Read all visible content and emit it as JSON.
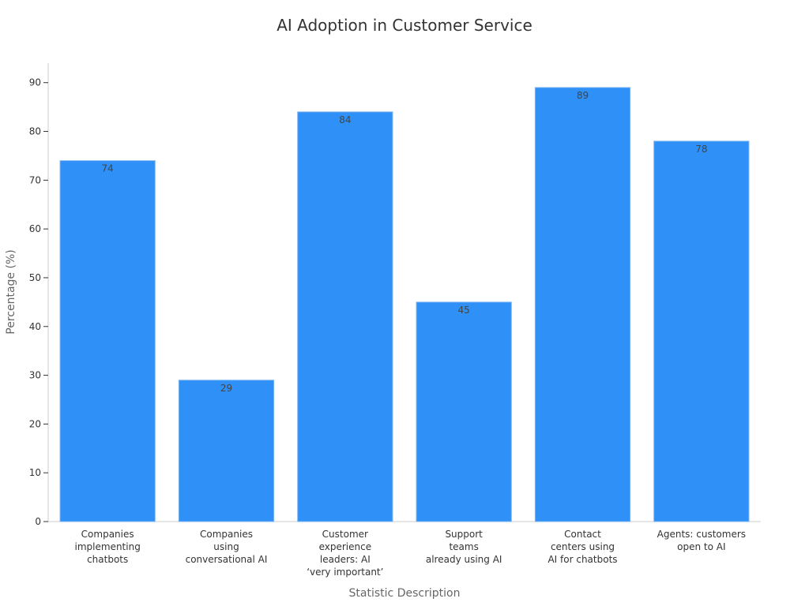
{
  "chart_data": {
    "type": "bar",
    "title": "AI Adoption in Customer Service",
    "xlabel": "Statistic Description",
    "ylabel": "Percentage (%)",
    "ylim": [
      0,
      94
    ],
    "yticks": [
      0,
      10,
      20,
      30,
      40,
      50,
      60,
      70,
      80,
      90
    ],
    "grid": false,
    "bar_color": "#2f91f7",
    "categories": [
      [
        "Companies",
        "implementing",
        "chatbots"
      ],
      [
        "Companies",
        "using",
        "conversational AI"
      ],
      [
        "Customer",
        "experience",
        "leaders: AI",
        "‘very important’"
      ],
      [
        "Support",
        "teams",
        "already using AI"
      ],
      [
        "Contact",
        "centers using",
        "AI for chatbots"
      ],
      [
        "Agents: customers",
        "open to AI"
      ]
    ],
    "values": [
      74,
      29,
      84,
      45,
      89,
      78
    ]
  }
}
